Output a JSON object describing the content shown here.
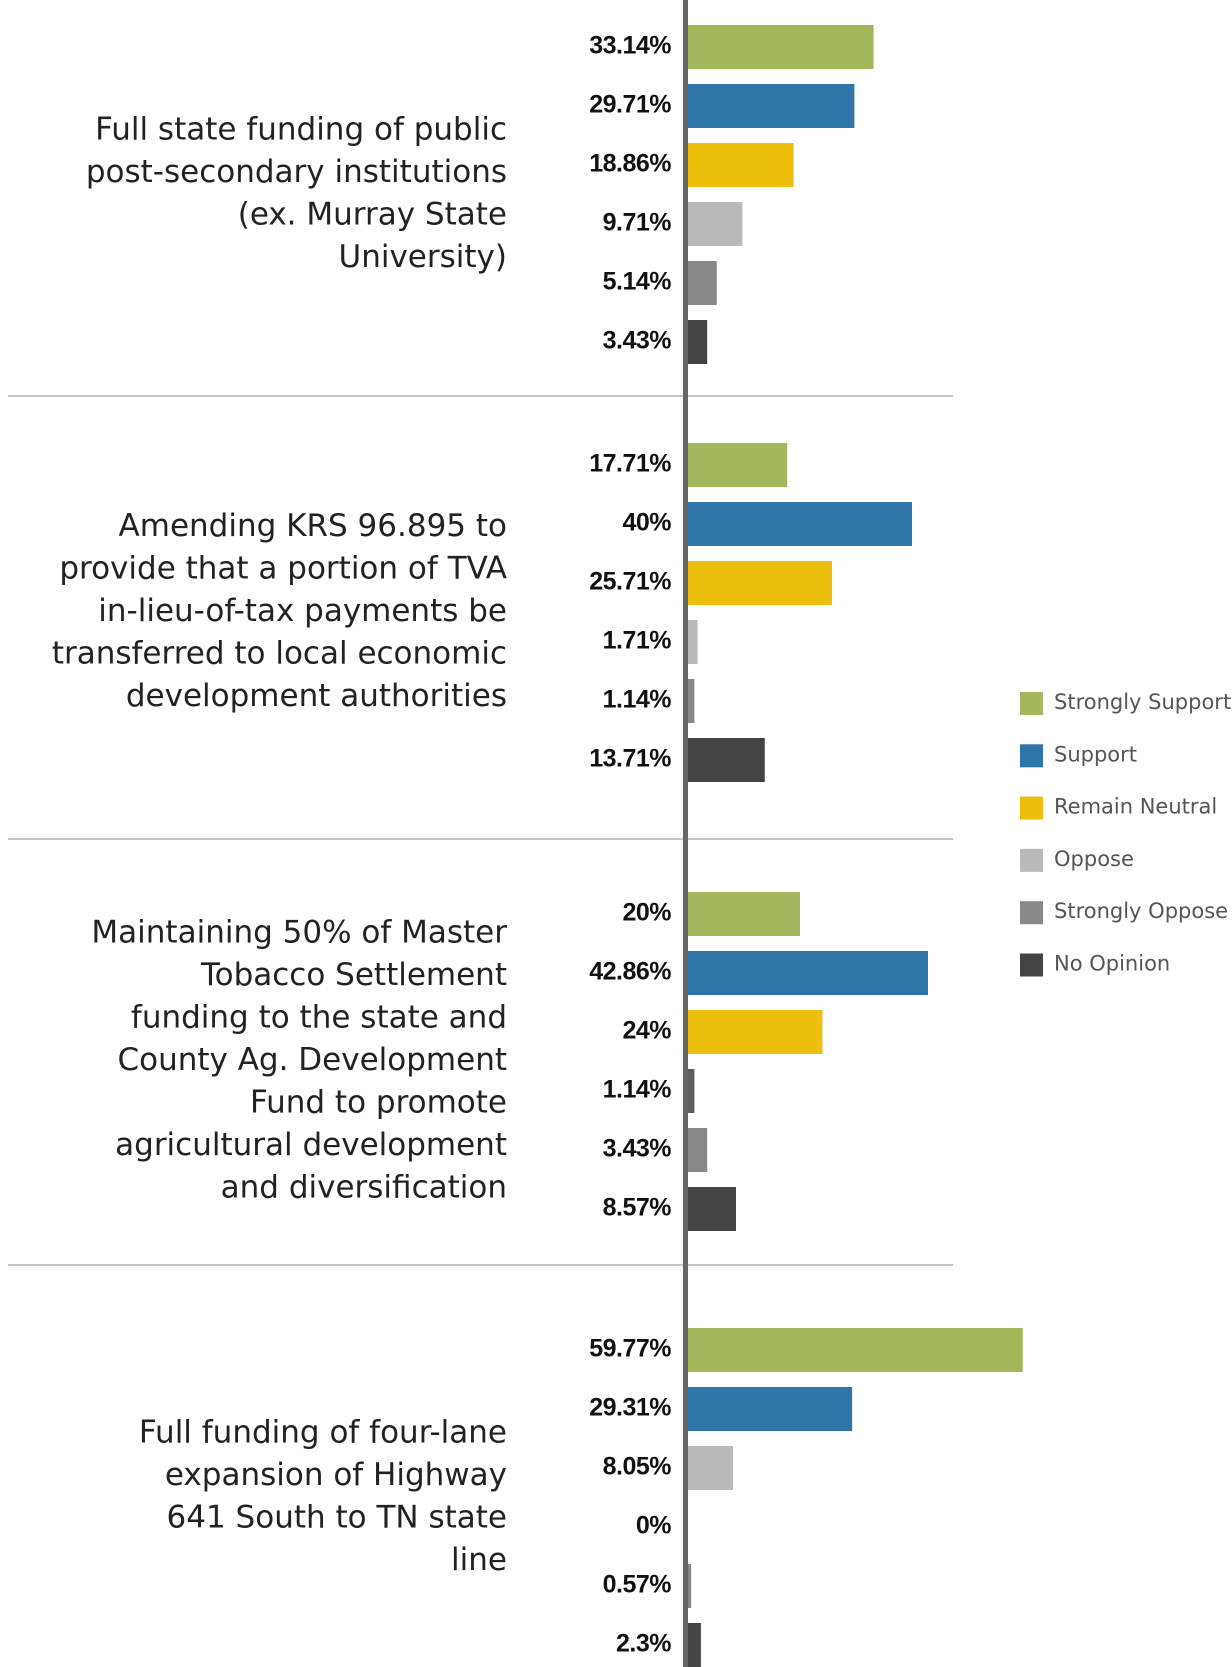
{
  "chart_data": {
    "type": "bar",
    "orientation": "horizontal",
    "legend": [
      {
        "name": "Strongly Support",
        "color": "#a3b85a"
      },
      {
        "name": "Support",
        "color": "#2e75a8"
      },
      {
        "name": "Remain Neutral",
        "color": "#edbf0c"
      },
      {
        "name": "Oppose",
        "color": "#b9b9b9"
      },
      {
        "name": "Strongly Oppose",
        "color": "#888888"
      },
      {
        "name": "No Opinion",
        "color": "#444444"
      }
    ],
    "groups": [
      {
        "label_lines": [
          "Full state funding of public",
          "post-secondary institutions",
          "(ex. Murray State",
          "University)"
        ],
        "values": [
          33.14,
          29.71,
          18.86,
          9.71,
          5.14,
          3.43
        ],
        "value_labels": [
          "33.14%",
          "29.71%",
          "18.86%",
          "9.71%",
          "5.14%",
          "3.43%"
        ],
        "colors": [
          "#a3b85a",
          "#2e75a8",
          "#edbf0c",
          "#b9b9b9",
          "#888888",
          "#444444"
        ]
      },
      {
        "label_lines": [
          "Amending KRS 96.895 to",
          "provide that a portion of TVA",
          "in-lieu-of-tax payments be",
          "transferred to local economic",
          "development authorities"
        ],
        "values": [
          17.71,
          40,
          25.71,
          1.71,
          1.14,
          13.71
        ],
        "value_labels": [
          "17.71%",
          "40%",
          "25.71%",
          "1.71%",
          "1.14%",
          "13.71%"
        ],
        "colors": [
          "#a3b85a",
          "#2e75a8",
          "#edbf0c",
          "#b9b9b9",
          "#888888",
          "#444444"
        ]
      },
      {
        "label_lines": [
          "Maintaining 50% of Master",
          "Tobacco Settlement",
          "funding to the state and",
          "County Ag. Development",
          "Fund to promote",
          "agricultural development",
          "and diversification"
        ],
        "values": [
          20,
          42.86,
          24,
          1.14,
          3.43,
          8.57
        ],
        "value_labels": [
          "20%",
          "42.86%",
          "24%",
          "1.14%",
          "3.43%",
          "8.57%"
        ],
        "colors": [
          "#a3b85a",
          "#2e75a8",
          "#edbf0c",
          "#5e5e5e",
          "#888888",
          "#444444"
        ]
      },
      {
        "label_lines": [
          "Full funding of four-lane",
          "expansion of Highway",
          "641 South to TN state",
          "line"
        ],
        "values": [
          59.77,
          29.31,
          8.05,
          0,
          0.57,
          2.3
        ],
        "value_labels": [
          "59.77%",
          "29.31%",
          "8.05%",
          "0%",
          "0.57%",
          "2.3%"
        ],
        "colors": [
          "#a3b85a",
          "#2e75a8",
          "#b9b9b9",
          "#888888",
          "#888888",
          "#444444"
        ]
      }
    ]
  }
}
